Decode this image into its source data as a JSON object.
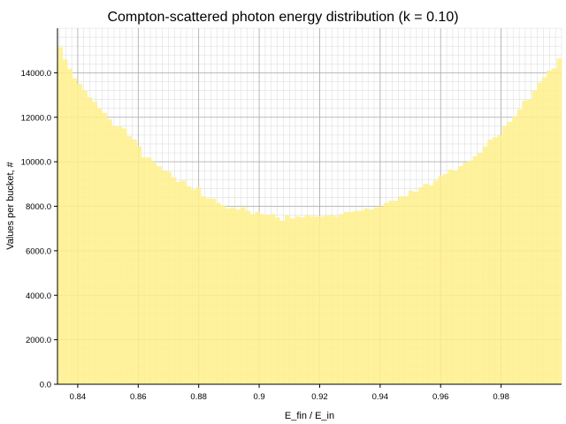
{
  "chart_data": {
    "type": "bar",
    "title": "Compton-scattered photon energy distribution (k = 0.10)",
    "xlabel": "E_fin / E_in",
    "ylabel": "Values per bucket, #",
    "xlim": [
      0.8333,
      1.0
    ],
    "ylim": [
      0,
      16000
    ],
    "x_ticks": [
      0.84,
      0.86,
      0.88,
      0.9,
      0.92,
      0.94,
      0.96,
      0.98
    ],
    "x_tick_labels": [
      "0.84",
      "0.86",
      "0.88",
      "0.9",
      "0.92",
      "0.94",
      "0.96",
      "0.98"
    ],
    "y_ticks": [
      0,
      2000,
      4000,
      6000,
      8000,
      10000,
      12000,
      14000
    ],
    "y_tick_labels": [
      "0.0",
      "2000.0",
      "4000.0",
      "6000.0",
      "8000.0",
      "10000.0",
      "12000.0",
      "14000.0"
    ],
    "grid": "major and minor",
    "bar_color": "#fff08c",
    "series": [
      {
        "bin_start": 0.8333,
        "bin_end": 1.0,
        "values": [
          15150,
          14600,
          14180,
          13750,
          13500,
          13200,
          12900,
          12700,
          12400,
          12200,
          11900,
          11600,
          11600,
          11500,
          11150,
          11000,
          10700,
          10200,
          10200,
          10000,
          9800,
          9600,
          9550,
          9300,
          9100,
          9150,
          8900,
          8750,
          8850,
          8450,
          8350,
          8350,
          8150,
          8050,
          7900,
          7950,
          7850,
          7950,
          7800,
          7650,
          7750,
          7650,
          7600,
          7650,
          7500,
          7350,
          7600,
          7450,
          7550,
          7500,
          7600,
          7550,
          7550,
          7550,
          7600,
          7600,
          7550,
          7650,
          7750,
          7750,
          7800,
          7800,
          7900,
          7850,
          7950,
          8000,
          8150,
          8250,
          8250,
          8450,
          8450,
          8700,
          8650,
          8850,
          9000,
          8950,
          9150,
          9350,
          9450,
          9650,
          9600,
          9800,
          9950,
          10050,
          10250,
          10400,
          10700,
          11000,
          11100,
          11200,
          11600,
          11800,
          12050,
          12350,
          12750,
          12800,
          13200,
          13550,
          13800,
          14100,
          14200,
          14650
        ]
      }
    ]
  }
}
